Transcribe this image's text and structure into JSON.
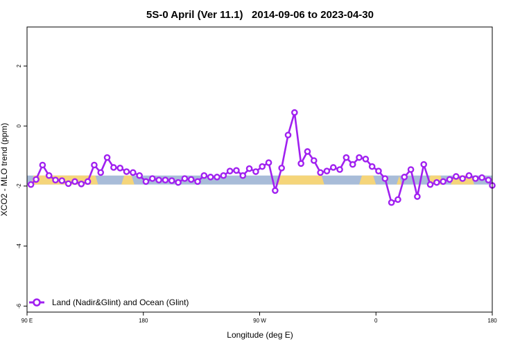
{
  "chart_data": {
    "type": "line",
    "title": "5S-0 April (Ver 11.1)   2014-09-06 to 2023-04-30",
    "xlabel": "Longitude (deg E)",
    "ylabel": "XCO2 - MLO trend (ppm)",
    "xlim": [
      90,
      450
    ],
    "ylim": [
      -6.2,
      3.3
    ],
    "xticks": [
      {
        "value": 90,
        "label": "90 E"
      },
      {
        "value": 180,
        "label": "180"
      },
      {
        "value": 270,
        "label": "90 W"
      },
      {
        "value": 360,
        "label": "0"
      },
      {
        "value": 450,
        "label": "180"
      }
    ],
    "yticks": [
      {
        "value": 2,
        "label": "2"
      },
      {
        "value": 0,
        "label": "0"
      },
      {
        "value": -2,
        "label": "-2"
      },
      {
        "value": -4,
        "label": "-4"
      },
      {
        "value": -6,
        "label": "-6"
      }
    ],
    "band": {
      "ymin": -1.95,
      "ymax": -1.65,
      "ocean_color": "#a8bcd8",
      "land_color": "#f5d57a"
    },
    "land_segments": [
      [
        93,
        145
      ],
      [
        163,
        173
      ],
      [
        283,
        320
      ],
      [
        347,
        360
      ],
      [
        376,
        380
      ],
      [
        400,
        412
      ],
      [
        418,
        436
      ]
    ],
    "legend_position": "bottom-left",
    "series": [
      {
        "name": "Land (Nadir&Glint) and Ocean (Glint)",
        "color": "#a020f0",
        "x": [
          93,
          97,
          102,
          107,
          112,
          117,
          122,
          127,
          132,
          137,
          142,
          147,
          152,
          157,
          162,
          167,
          172,
          177,
          182,
          187,
          192,
          197,
          202,
          207,
          212,
          217,
          222,
          227,
          232,
          237,
          242,
          247,
          252,
          257,
          262,
          267,
          272,
          277,
          282,
          287,
          292,
          297,
          302,
          307,
          312,
          317,
          322,
          327,
          332,
          337,
          342,
          347,
          352,
          357,
          362,
          367,
          372,
          377,
          382,
          387,
          392,
          397,
          402,
          407,
          412,
          417,
          422,
          427,
          432,
          437,
          442,
          447,
          450
        ],
        "y": [
          -1.95,
          -1.78,
          -1.3,
          -1.65,
          -1.8,
          -1.82,
          -1.92,
          -1.85,
          -1.93,
          -1.85,
          -1.3,
          -1.55,
          -1.05,
          -1.38,
          -1.4,
          -1.52,
          -1.55,
          -1.65,
          -1.85,
          -1.75,
          -1.8,
          -1.8,
          -1.82,
          -1.88,
          -1.75,
          -1.78,
          -1.85,
          -1.65,
          -1.7,
          -1.7,
          -1.65,
          -1.5,
          -1.48,
          -1.65,
          -1.42,
          -1.52,
          -1.35,
          -1.22,
          -2.15,
          -1.4,
          -0.3,
          0.45,
          -1.25,
          -0.85,
          -1.15,
          -1.55,
          -1.5,
          -1.38,
          -1.45,
          -1.05,
          -1.28,
          -1.05,
          -1.1,
          -1.35,
          -1.5,
          -1.75,
          -2.55,
          -2.45,
          -1.7,
          -1.45,
          -2.35,
          -1.28,
          -1.95,
          -1.88,
          -1.85,
          -1.78,
          -1.68,
          -1.75,
          -1.65,
          -1.75,
          -1.72,
          -1.8,
          -1.98
        ]
      }
    ]
  }
}
